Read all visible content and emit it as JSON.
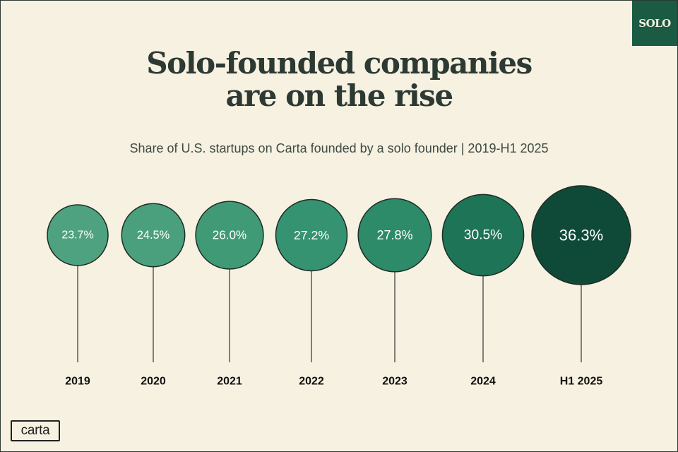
{
  "badge": "SOLO",
  "logo": "carta",
  "chart_data": {
    "type": "bubble",
    "title_lines": [
      "Solo-founded companies",
      "are on the rise"
    ],
    "subtitle": "Share of U.S. startups on Carta founded by a solo founder | 2019-H1 2025",
    "categories": [
      "2019",
      "2020",
      "2021",
      "2022",
      "2023",
      "2024",
      "H1 2025"
    ],
    "values": [
      23.7,
      24.5,
      26.0,
      27.2,
      27.8,
      30.5,
      36.3
    ],
    "labels": [
      "23.7%",
      "24.5%",
      "26.0%",
      "27.2%",
      "27.8%",
      "30.5%",
      "36.3%"
    ],
    "unit": "%",
    "colors": [
      "#4fa280",
      "#4aa07d",
      "#409a76",
      "#359371",
      "#2d8b69",
      "#1e7457",
      "#0f4a38"
    ]
  }
}
